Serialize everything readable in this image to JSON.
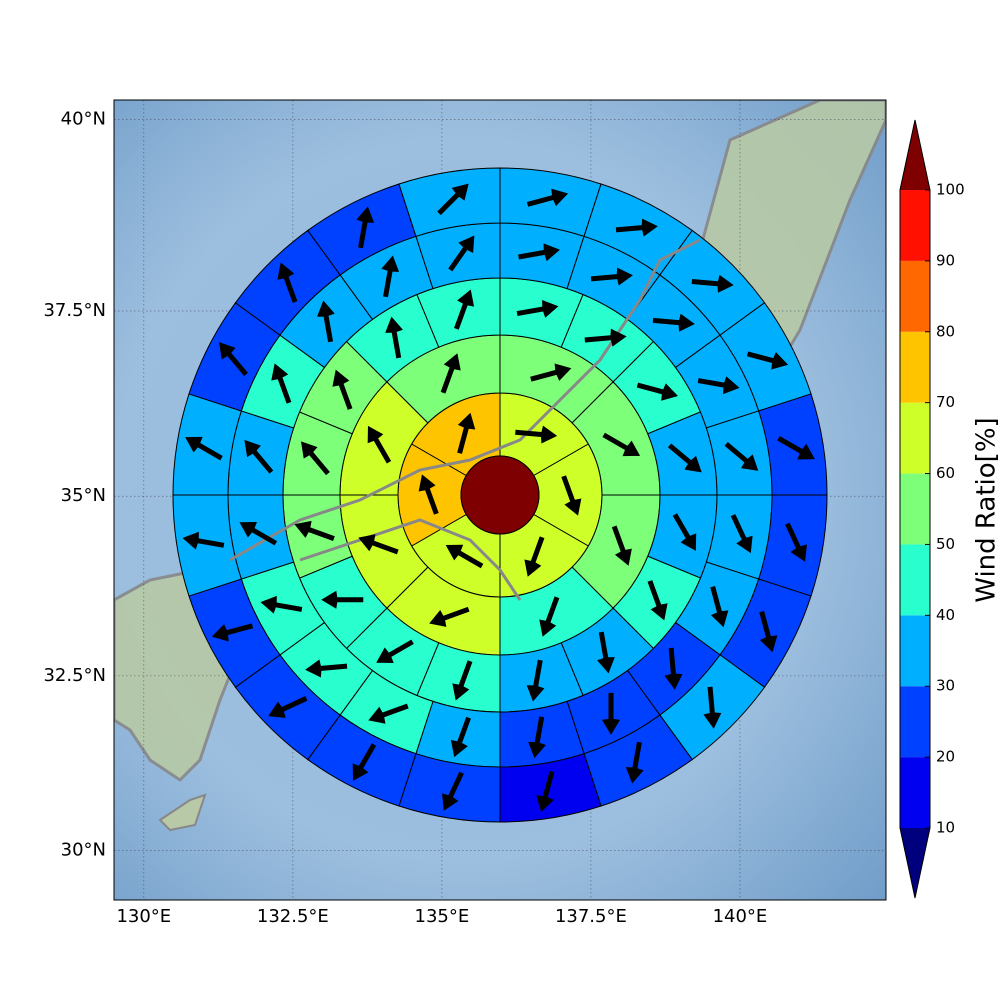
{
  "chart_data": {
    "type": "polar-grid-map",
    "xlim": [
      129.5,
      142.45
    ],
    "ylim": [
      29.28,
      40.25
    ],
    "xticks": [
      {
        "value": 130,
        "label": "130°E"
      },
      {
        "value": 132.5,
        "label": "132.5°E"
      },
      {
        "value": 135,
        "label": "135°E"
      },
      {
        "value": 137.5,
        "label": "137.5°E"
      },
      {
        "value": 140,
        "label": "140°E"
      }
    ],
    "yticks": [
      {
        "value": 30,
        "label": "30°N"
      },
      {
        "value": 32.5,
        "label": "32.5°N"
      },
      {
        "value": 35,
        "label": "35°N"
      },
      {
        "value": 37.5,
        "label": "37.5°N"
      },
      {
        "value": 40,
        "label": "40°N"
      }
    ],
    "grid": true,
    "colorbar": {
      "label": "Wind Ratio[%]",
      "ticks": [
        10,
        20,
        30,
        40,
        50,
        60,
        70,
        80,
        90,
        100
      ],
      "colors": [
        "#0000f0",
        "#0040ff",
        "#00b0ff",
        "#29ffce",
        "#7dff7a",
        "#ceff29",
        "#ffc400",
        "#ff6800",
        "#ff1000"
      ],
      "under_color": "#00007f",
      "over_color": "#7f0000"
    },
    "center": {
      "value": 105
    },
    "rings": [
      {
        "values": [
          65,
          65,
          65,
          65,
          75,
          75
        ],
        "directions": [
          95,
          160,
          200,
          300,
          340,
          15
        ]
      },
      {
        "values": [
          55,
          55,
          55,
          45,
          65,
          65,
          65,
          55
        ],
        "directions": [
          75,
          120,
          160,
          200,
          250,
          290,
          330,
          20
        ]
      },
      {
        "values": [
          45,
          45,
          45,
          35,
          35,
          45,
          35,
          35,
          45,
          45,
          45,
          55,
          55,
          55,
          45,
          45
        ],
        "directions": [
          80,
          85,
          105,
          130,
          150,
          160,
          170,
          190,
          200,
          240,
          270,
          290,
          320,
          340,
          350,
          20
        ]
      },
      {
        "values": [
          35,
          35,
          35,
          35,
          35,
          35,
          35,
          25,
          25,
          25,
          35,
          45,
          45,
          45,
          35,
          35,
          45,
          35,
          35,
          35
        ],
        "directions": [
          80,
          85,
          95,
          100,
          130,
          155,
          165,
          175,
          180,
          190,
          200,
          250,
          265,
          280,
          300,
          320,
          340,
          350,
          10,
          35
        ]
      },
      {
        "values": [
          35,
          35,
          35,
          35,
          25,
          25,
          25,
          35,
          25,
          15,
          25,
          25,
          25,
          25,
          35,
          35,
          25,
          25,
          25,
          35
        ],
        "directions": [
          75,
          85,
          95,
          105,
          120,
          155,
          165,
          175,
          190,
          195,
          205,
          210,
          245,
          255,
          280,
          300,
          320,
          340,
          10,
          45
        ]
      }
    ]
  }
}
